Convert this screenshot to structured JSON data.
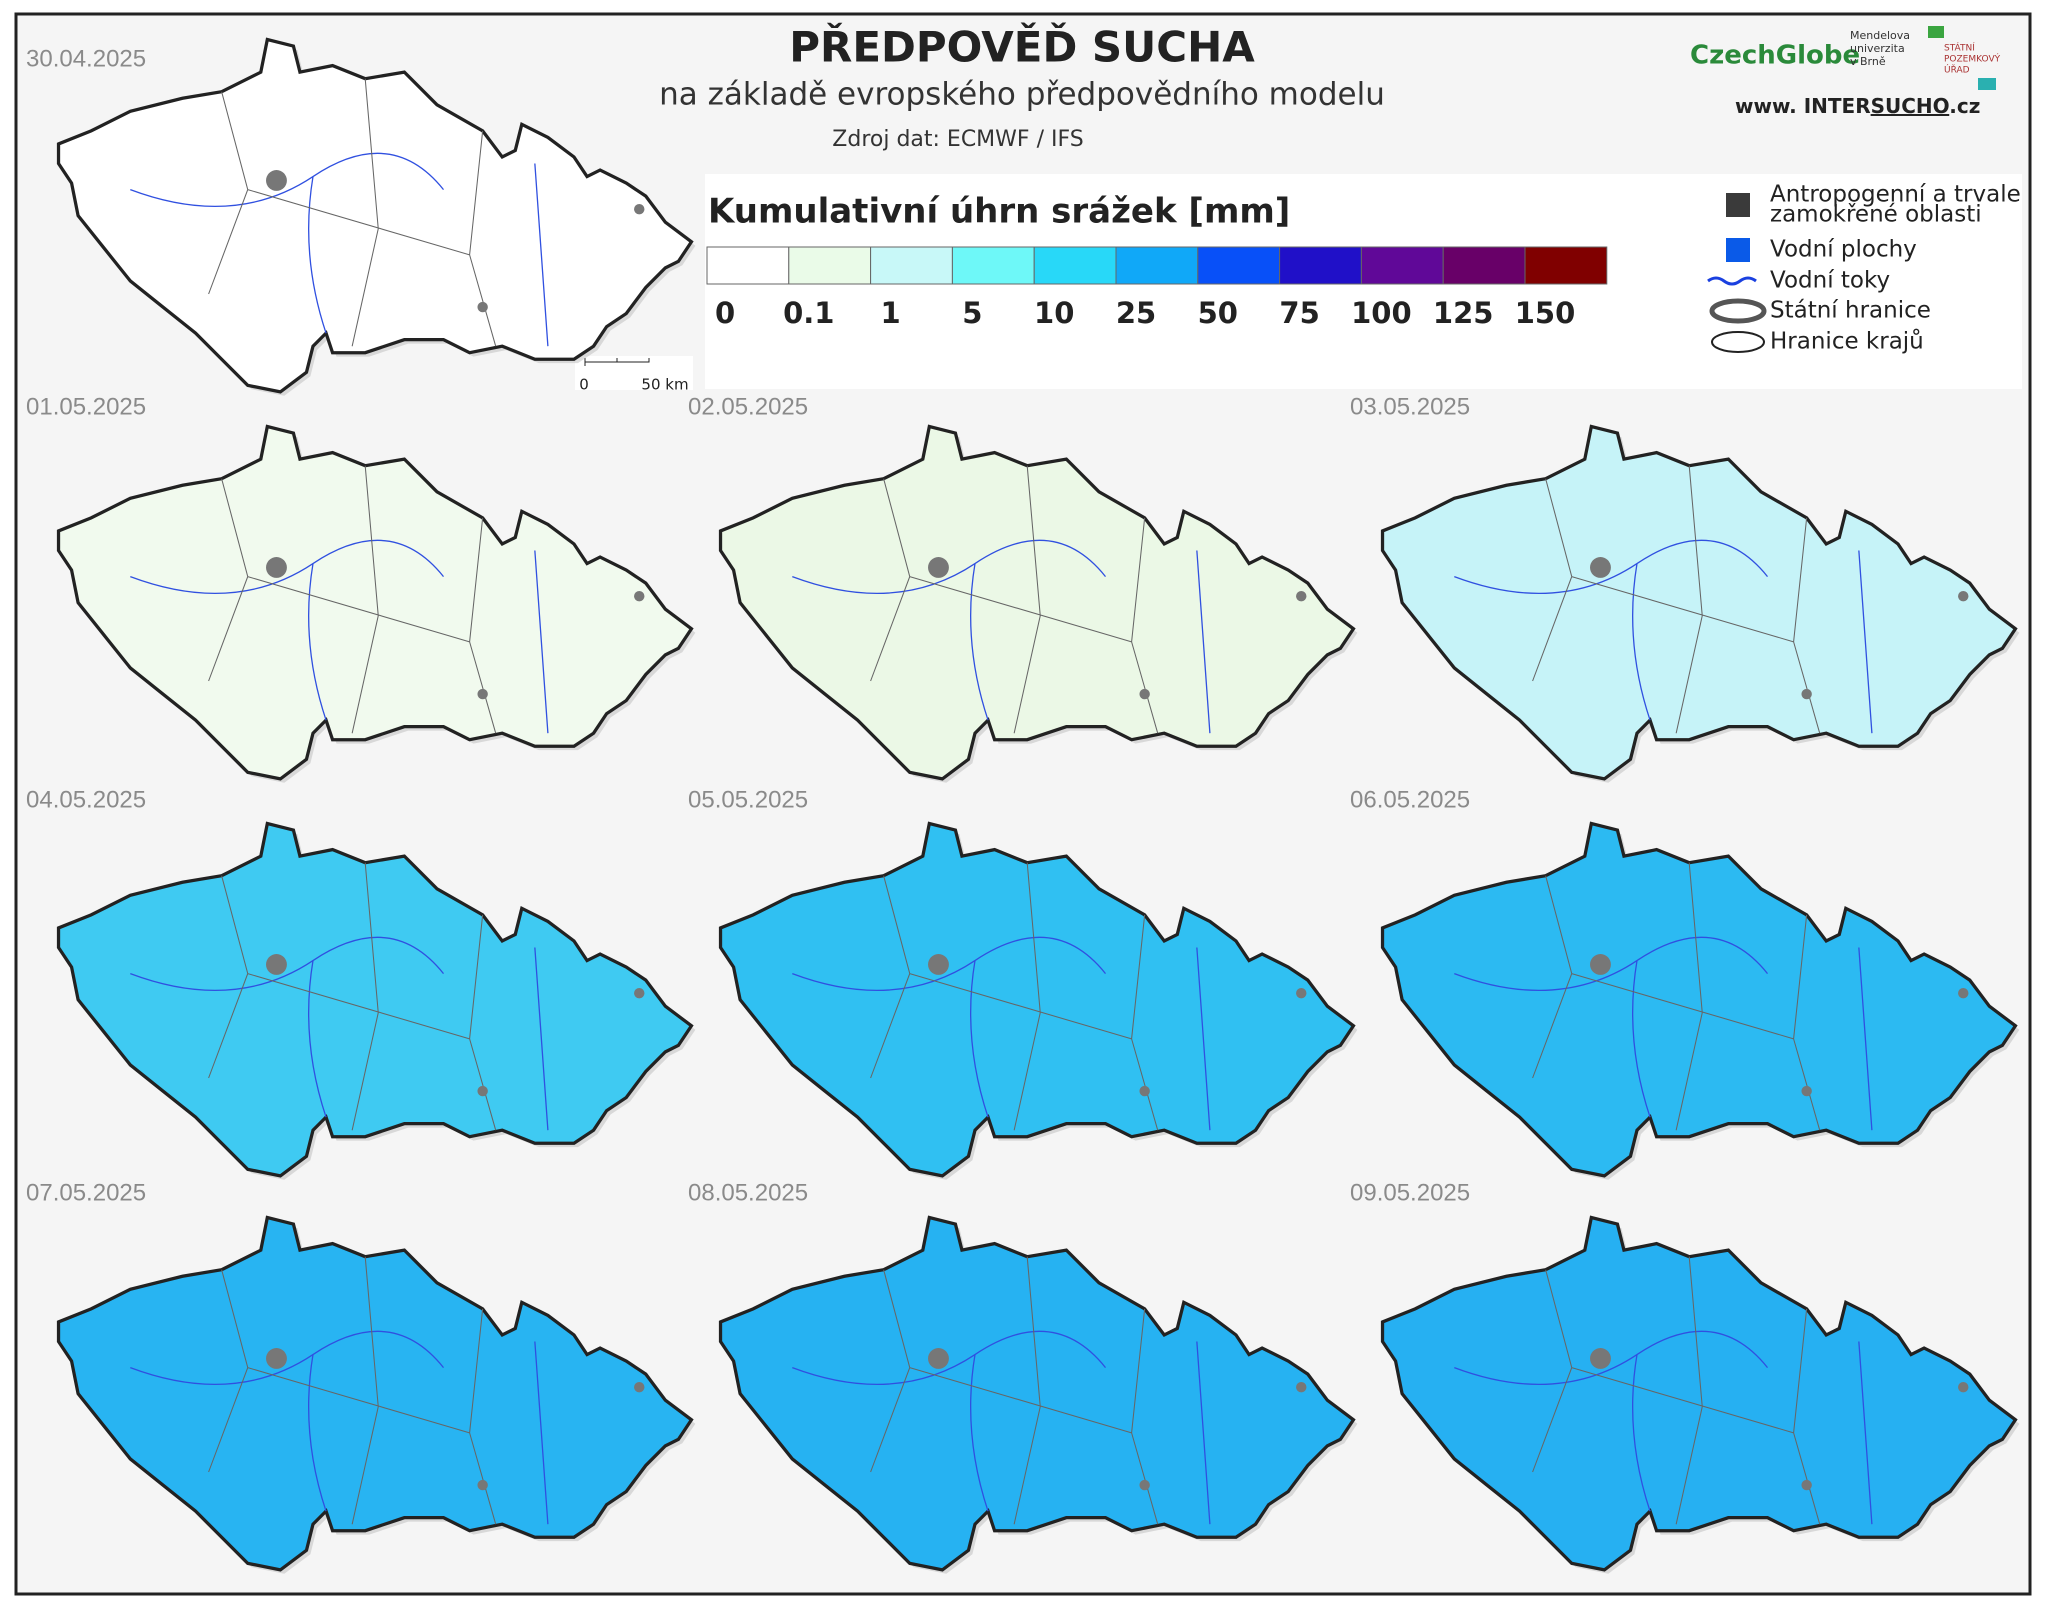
{
  "header": {
    "title": "PŘEDPOVĚĎ SUCHA",
    "subtitle": "na základě evropského předpovědního modelu",
    "source": "Zdroj dat: ECMWF / IFS"
  },
  "logos": {
    "czechglobe": "CzechGlobe",
    "mendelu": [
      "Mendelova",
      "univerzita",
      "v Brně"
    ],
    "spu": [
      "STÁTNÍ",
      "POZEMKOVÝ",
      "ÚŘAD"
    ],
    "intersucho": {
      "prefix": "www. INTER",
      "highlight": "SUCHO",
      "suffix": ".cz"
    }
  },
  "legend": {
    "title": "Kumulativní úhrn srážek [mm]",
    "scale": {
      "labels": [
        0,
        0.1,
        1,
        5,
        10,
        25,
        50,
        75,
        100,
        125,
        150
      ],
      "colors": [
        "#ffffff",
        "#eafbe8",
        "#c8f8f8",
        "#6ef8f8",
        "#28d8f8",
        "#10a8f8",
        "#0850f8",
        "#2010c8",
        "#600898",
        "#680068",
        "#800000"
      ]
    },
    "items": [
      {
        "label": [
          "Antropogenní a trvale",
          "zamokřené oblasti"
        ],
        "color": "#3a3a3a"
      },
      {
        "label": [
          "Vodní plochy"
        ],
        "color": "#0a5ae8"
      },
      {
        "label": [
          "Vodní toky"
        ],
        "color": "#1a40e0"
      },
      {
        "label": [
          "Státní hranice"
        ],
        "color": "#555555"
      },
      {
        "label": [
          "Hranice krajů"
        ],
        "color": "#222222"
      }
    ]
  },
  "scalebar": {
    "start": "0",
    "end": "50 km"
  },
  "maps": [
    {
      "date": "30.04.2025",
      "color": "#ffffff"
    },
    {
      "date": "01.05.2025",
      "color": "#f1faee"
    },
    {
      "date": "02.05.2025",
      "color": "#ebf8e6"
    },
    {
      "date": "03.05.2025",
      "color": "#c6f3f8"
    },
    {
      "date": "04.05.2025",
      "color": "#3fcaf2"
    },
    {
      "date": "05.05.2025",
      "color": "#30c0f2"
    },
    {
      "date": "06.05.2025",
      "color": "#2cbaf2"
    },
    {
      "date": "07.05.2025",
      "color": "#28b4f2"
    },
    {
      "date": "08.05.2025",
      "color": "#26b2f2"
    },
    {
      "date": "09.05.2025",
      "color": "#26b0f2"
    }
  ]
}
